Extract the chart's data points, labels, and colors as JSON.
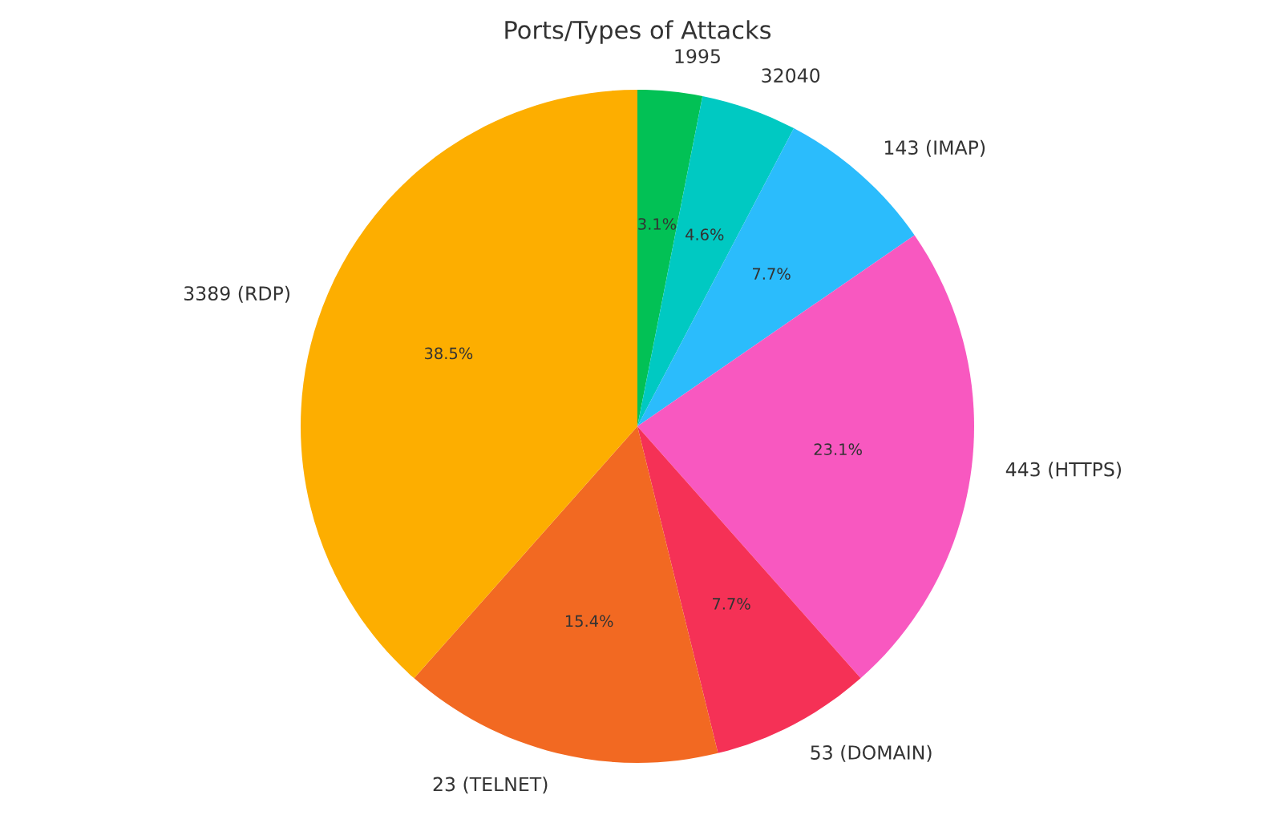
{
  "chart_data": {
    "type": "pie",
    "title": "Ports/Types of Attacks",
    "categories": [
      "1995",
      "32040",
      "143 (IMAP)",
      "443 (HTTPS)",
      "53 (DOMAIN)",
      "23 (TELNET)",
      "3389 (RDP)"
    ],
    "values": [
      3.1,
      4.6,
      7.7,
      23.1,
      7.7,
      15.4,
      38.5
    ],
    "value_labels": [
      "3.1%",
      "4.6%",
      "7.7%",
      "23.1%",
      "7.7%",
      "15.4%",
      "38.5%"
    ],
    "colors": [
      "#02c155",
      "#00c9c2",
      "#2bbcfc",
      "#f858c0",
      "#f53156",
      "#f26922",
      "#fdae00"
    ],
    "legend": false
  }
}
